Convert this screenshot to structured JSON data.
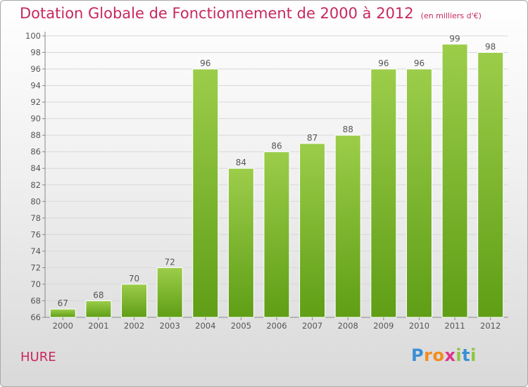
{
  "header": {
    "title": "Dotation Globale de Fonctionnement de 2000 à 2012",
    "subtitle": "(en milliers d'€)"
  },
  "commune": "HURE",
  "logo": {
    "letters": [
      {
        "ch": "P",
        "color": "#3b8fd6"
      },
      {
        "ch": "r",
        "color": "#f28c1e"
      },
      {
        "ch": "o",
        "color": "#f28c1e"
      },
      {
        "ch": "x",
        "color": "#e1338a"
      },
      {
        "ch": "i",
        "color": "#8dc63f"
      },
      {
        "ch": "t",
        "color": "#3b8fd6"
      },
      {
        "ch": "i",
        "color": "#8dc63f"
      }
    ]
  },
  "chart_data": {
    "type": "bar",
    "categories": [
      "2000",
      "2001",
      "2002",
      "2003",
      "2004",
      "2005",
      "2006",
      "2007",
      "2008",
      "2009",
      "2010",
      "2011",
      "2012"
    ],
    "values": [
      67,
      68,
      70,
      72,
      96,
      84,
      86,
      87,
      88,
      96,
      96,
      99,
      98
    ],
    "ylim": [
      66,
      100
    ],
    "yticks": [
      66,
      68,
      70,
      72,
      74,
      76,
      78,
      80,
      82,
      84,
      86,
      88,
      90,
      92,
      94,
      96,
      98,
      100
    ],
    "grid": true,
    "bar_color_top": "#9ccd4a",
    "bar_color_bottom": "#5f9e16",
    "label_color": "#555555",
    "grid_color": "#d8d8d8"
  }
}
